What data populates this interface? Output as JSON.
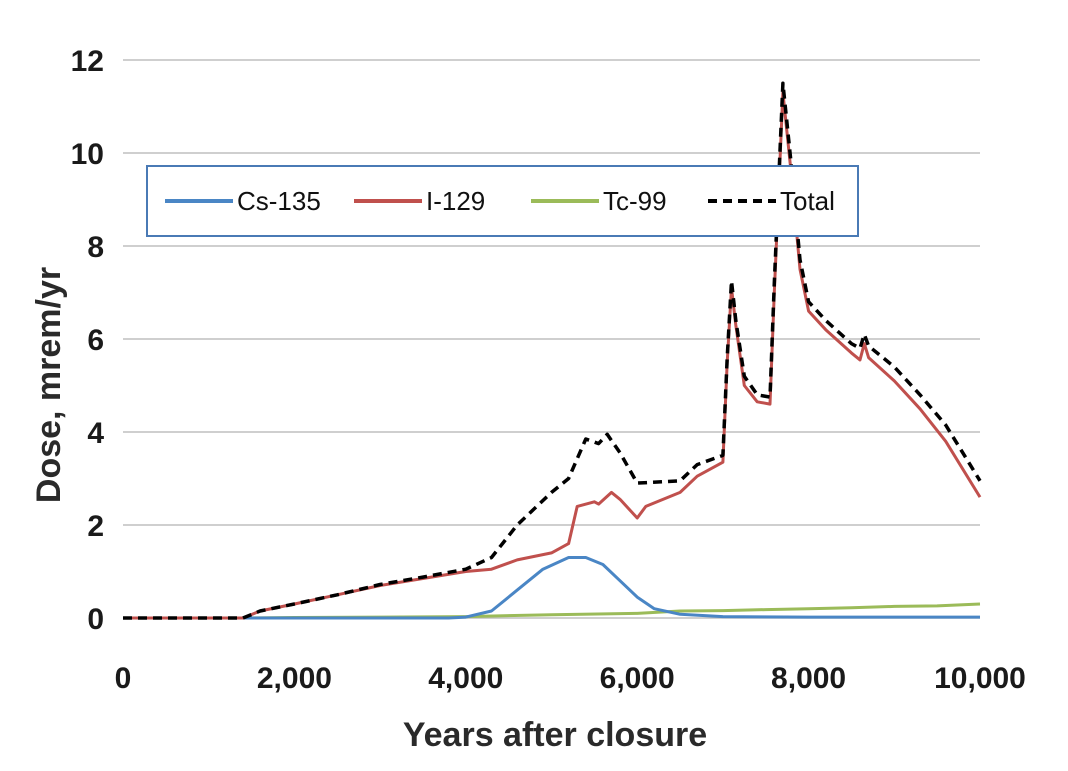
{
  "chart_data": {
    "type": "line",
    "xlabel": "Years after closure",
    "ylabel": "Dose, mrem/yr",
    "xlim": [
      0,
      10000
    ],
    "ylim": [
      0,
      12
    ],
    "x_ticks": [
      0,
      2000,
      4000,
      6000,
      8000,
      10000
    ],
    "x_tick_labels": [
      "0",
      "2,000",
      "4,000",
      "6,000",
      "8,000",
      "10,000"
    ],
    "y_ticks": [
      0,
      2,
      4,
      6,
      8,
      10,
      12
    ],
    "y_tick_labels": [
      "0",
      "2",
      "4",
      "6",
      "8",
      "10",
      "12"
    ],
    "grid": "horizontal",
    "legend_position": "top-left, inside plot",
    "series": [
      {
        "name": "Cs-135",
        "color": "#4a86c5",
        "dash": "solid",
        "points": [
          [
            0,
            0
          ],
          [
            3800,
            0
          ],
          [
            4000,
            0.02
          ],
          [
            4300,
            0.15
          ],
          [
            4600,
            0.6
          ],
          [
            4900,
            1.05
          ],
          [
            5200,
            1.3
          ],
          [
            5400,
            1.3
          ],
          [
            5600,
            1.15
          ],
          [
            5800,
            0.8
          ],
          [
            6000,
            0.45
          ],
          [
            6200,
            0.2
          ],
          [
            6500,
            0.08
          ],
          [
            7000,
            0.03
          ],
          [
            8000,
            0.02
          ],
          [
            10000,
            0.02
          ]
        ]
      },
      {
        "name": "I-129",
        "color": "#c0504d",
        "dash": "solid",
        "points": [
          [
            0,
            0
          ],
          [
            1400,
            0
          ],
          [
            1600,
            0.15
          ],
          [
            2000,
            0.3
          ],
          [
            2500,
            0.5
          ],
          [
            3000,
            0.7
          ],
          [
            3500,
            0.85
          ],
          [
            4000,
            1.0
          ],
          [
            4300,
            1.05
          ],
          [
            4600,
            1.25
          ],
          [
            5000,
            1.4
          ],
          [
            5200,
            1.6
          ],
          [
            5300,
            2.4
          ],
          [
            5500,
            2.5
          ],
          [
            5550,
            2.45
          ],
          [
            5700,
            2.7
          ],
          [
            5800,
            2.55
          ],
          [
            6000,
            2.15
          ],
          [
            6100,
            2.4
          ],
          [
            6500,
            2.7
          ],
          [
            6700,
            3.05
          ],
          [
            7000,
            3.35
          ],
          [
            7050,
            5.5
          ],
          [
            7100,
            7.1
          ],
          [
            7150,
            6.3
          ],
          [
            7250,
            5.0
          ],
          [
            7400,
            4.65
          ],
          [
            7550,
            4.6
          ],
          [
            7600,
            7.0
          ],
          [
            7700,
            11.3
          ],
          [
            7800,
            9.5
          ],
          [
            7900,
            7.5
          ],
          [
            8000,
            6.6
          ],
          [
            8200,
            6.2
          ],
          [
            8500,
            5.7
          ],
          [
            8600,
            5.55
          ],
          [
            8650,
            5.9
          ],
          [
            8700,
            5.6
          ],
          [
            9000,
            5.1
          ],
          [
            9300,
            4.5
          ],
          [
            9600,
            3.8
          ],
          [
            10000,
            2.6
          ]
        ]
      },
      {
        "name": "Tc-99",
        "color": "#9bbb59",
        "dash": "solid",
        "points": [
          [
            0,
            0
          ],
          [
            1400,
            0
          ],
          [
            2000,
            0.01
          ],
          [
            3000,
            0.02
          ],
          [
            4000,
            0.03
          ],
          [
            5000,
            0.07
          ],
          [
            6000,
            0.1
          ],
          [
            6500,
            0.15
          ],
          [
            7000,
            0.16
          ],
          [
            7500,
            0.18
          ],
          [
            8000,
            0.2
          ],
          [
            8500,
            0.22
          ],
          [
            9000,
            0.25
          ],
          [
            9500,
            0.26
          ],
          [
            10000,
            0.3
          ]
        ]
      },
      {
        "name": "Total",
        "color": "#000000",
        "dash": "dashed",
        "points": [
          [
            0,
            0
          ],
          [
            1400,
            0
          ],
          [
            1600,
            0.15
          ],
          [
            2000,
            0.3
          ],
          [
            2500,
            0.5
          ],
          [
            3000,
            0.72
          ],
          [
            3500,
            0.88
          ],
          [
            4000,
            1.05
          ],
          [
            4300,
            1.3
          ],
          [
            4600,
            2.0
          ],
          [
            5000,
            2.7
          ],
          [
            5200,
            3.0
          ],
          [
            5400,
            3.85
          ],
          [
            5550,
            3.75
          ],
          [
            5650,
            3.95
          ],
          [
            5800,
            3.55
          ],
          [
            6000,
            2.9
          ],
          [
            6500,
            2.95
          ],
          [
            6700,
            3.3
          ],
          [
            7000,
            3.5
          ],
          [
            7050,
            5.6
          ],
          [
            7100,
            7.25
          ],
          [
            7150,
            6.4
          ],
          [
            7250,
            5.2
          ],
          [
            7400,
            4.8
          ],
          [
            7550,
            4.75
          ],
          [
            7600,
            7.2
          ],
          [
            7700,
            11.5
          ],
          [
            7800,
            9.7
          ],
          [
            7900,
            7.7
          ],
          [
            8000,
            6.8
          ],
          [
            8200,
            6.4
          ],
          [
            8500,
            5.9
          ],
          [
            8600,
            5.8
          ],
          [
            8650,
            6.1
          ],
          [
            8700,
            5.85
          ],
          [
            9000,
            5.4
          ],
          [
            9300,
            4.8
          ],
          [
            9600,
            4.15
          ],
          [
            10000,
            2.95
          ]
        ]
      }
    ]
  }
}
